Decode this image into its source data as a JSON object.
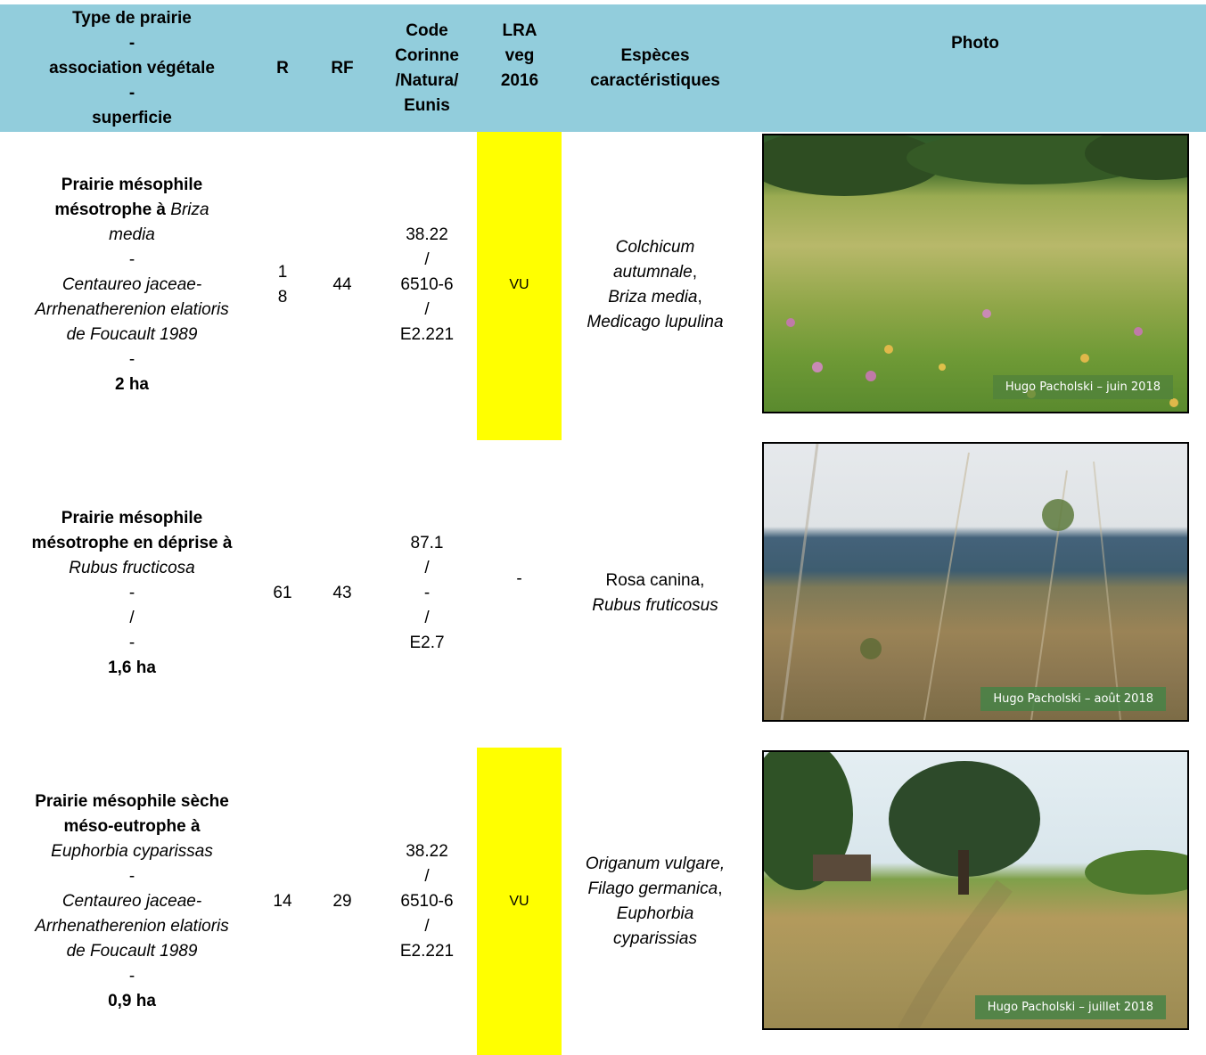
{
  "header": {
    "type": [
      "Type de prairie",
      "-",
      "association végétale",
      "-",
      "superficie"
    ],
    "r": "R",
    "rf": "RF",
    "code": [
      "Code",
      "Corinne",
      "/Natura/",
      "Eunis"
    ],
    "lra": [
      "LRA",
      "veg",
      "2016"
    ],
    "especes": [
      "Espèces",
      "caractéristiques"
    ],
    "photo": "Photo"
  },
  "rows": [
    {
      "type_l1": "Prairie mésophile",
      "type_l2b": "mésotrophe à ",
      "type_l2i": "Briza",
      "type_l3": "media",
      "type_l4": "-",
      "type_l5": "Centaureo jaceae-",
      "type_l6": "Arrhenatherenion elatioris",
      "type_l7": "de Foucault 1989",
      "type_l8": "-",
      "surface": "2 ha",
      "r": [
        "1",
        "8"
      ],
      "rf": "44",
      "code": [
        "38.22",
        "/",
        "6510-6",
        "/",
        "E2.221"
      ],
      "lra": "VU",
      "esp": [
        "Colchicum",
        "autumnale",
        ",",
        "Briza media",
        ",",
        "Medicago lupulina"
      ],
      "credit": "Hugo Pacholski – juin 2018"
    },
    {
      "type_l1": "Prairie mésophile",
      "type_l2": "mésotrophe en déprise à",
      "type_l3": "Rubus fructicosa",
      "type_l4": "-",
      "type_l5": "/",
      "type_l6": "-",
      "surface": "1,6 ha",
      "r": "61",
      "rf": "43",
      "code": [
        "87.1",
        "/",
        "-",
        "/",
        "E2.7"
      ],
      "lra": "-",
      "esp": [
        "Rosa canina,",
        "Rubus fruticosus"
      ],
      "credit": "Hugo Pacholski – août 2018"
    },
    {
      "type_l1": "Prairie mésophile sèche",
      "type_l2": "méso-eutrophe à",
      "type_l3": "Euphorbia cyparissas",
      "type_l4": "-",
      "type_l5": "Centaureo jaceae-",
      "type_l6": "Arrhenatherenion elatioris",
      "type_l7": "de Foucault 1989",
      "type_l8": "-",
      "surface": "0,9 ha",
      "r": "14",
      "rf": "29",
      "code": [
        "38.22",
        "/",
        "6510-6",
        "/",
        "E2.221"
      ],
      "lra": "VU",
      "esp": [
        "Origanum vulgare,",
        "Filago germanica",
        ",",
        "Euphorbia",
        "cyparissias"
      ],
      "credit": "Hugo Pacholski – juillet 2018"
    }
  ],
  "colors": {
    "header_bg": "#92cddc",
    "lra_highlight": "#ffff00"
  }
}
